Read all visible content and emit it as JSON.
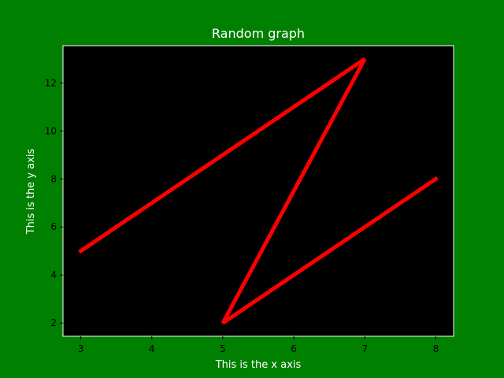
{
  "colors": {
    "figure_background": "#008000",
    "plot_background": "#000000",
    "line": "#ff0000",
    "title_text": "#ffffff",
    "axis_label_text": "#ffffff",
    "tick_text": "#000000",
    "frame": "#ffffff"
  },
  "chart_data": {
    "type": "line",
    "title": "Random graph",
    "xlabel": "This is the x axis",
    "ylabel": "This is the y axis",
    "xlim": [
      2.75,
      8.25
    ],
    "ylim": [
      1.45,
      13.55
    ],
    "x_ticks": [
      3,
      4,
      5,
      6,
      7,
      8
    ],
    "y_ticks": [
      2,
      4,
      6,
      8,
      10,
      12
    ],
    "grid": false,
    "series": [
      {
        "x": [
          3,
          7,
          5,
          8
        ],
        "y": [
          5,
          13,
          2,
          8
        ]
      }
    ]
  }
}
